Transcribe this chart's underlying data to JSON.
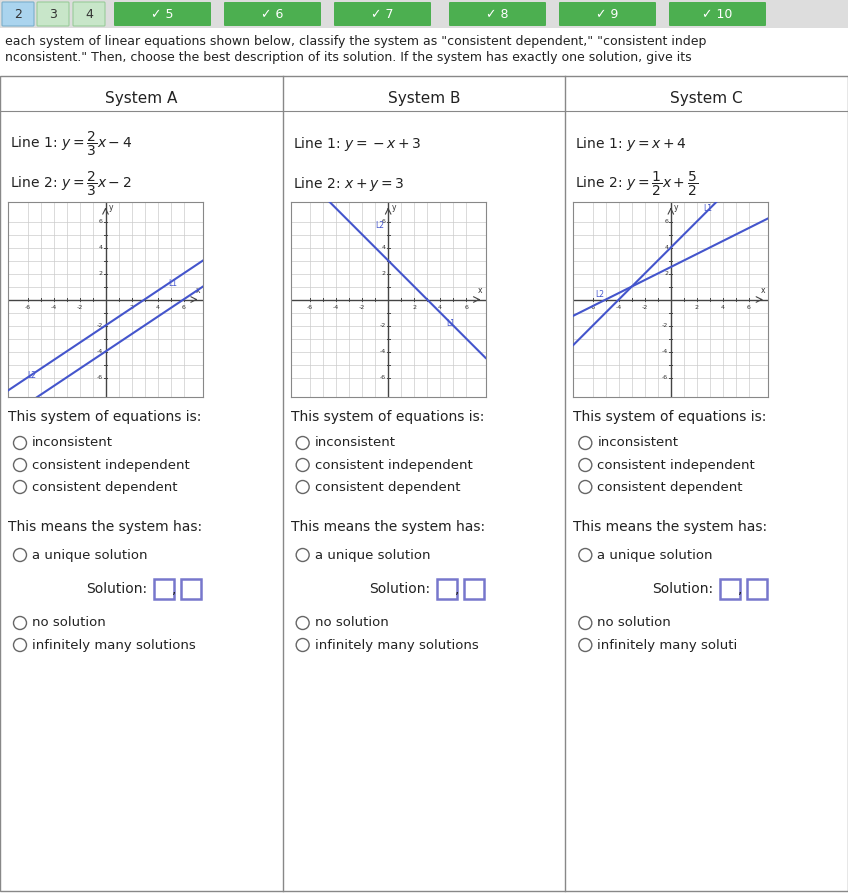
{
  "systems": [
    "System A",
    "System B",
    "System C"
  ],
  "graph_line_color": "#4455cc",
  "grid_color": "#cccccc",
  "radio_options_1": [
    "inconsistent",
    "consistent independent",
    "consistent dependent"
  ],
  "section1_label": "This system of equations is:",
  "section2_label": "This means the system has:",
  "solution_label": "Solution:",
  "bg_color": "#ffffff",
  "nav_bg": "#e8e8e8",
  "header_line1": "each system of linear equations shown below, classify the system as \"consistent dependent,\" \"consistent indep",
  "header_line2": "nconsistent.\" Then, choose the best description of its solution. If the system has exactly one solution, give its"
}
